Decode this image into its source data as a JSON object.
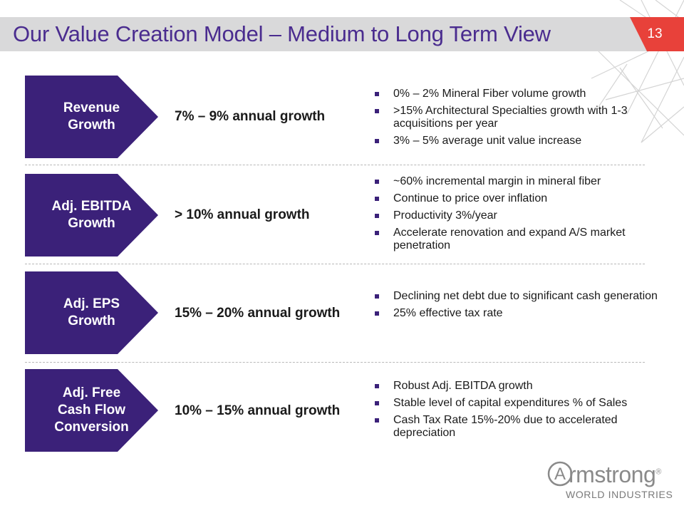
{
  "slide": {
    "title": "Our Value Creation Model – Medium to Long Term View",
    "page_number": "13",
    "accent_color": "#3b2179",
    "corner_color": "#e8413a"
  },
  "rows": [
    {
      "label": "Revenue\nGrowth",
      "target": "7% – 9% annual growth",
      "bullets": [
        "0% – 2% Mineral Fiber volume growth",
        ">15% Architectural Specialties growth with 1-3 acquisitions per year",
        "3% – 5% average unit value increase"
      ]
    },
    {
      "label": "Adj. EBITDA\nGrowth",
      "target": "> 10% annual growth",
      "bullets": [
        "~60% incremental margin in mineral fiber",
        "Continue to price over inflation",
        "Productivity 3%/year",
        "Accelerate renovation and expand A/S market penetration"
      ]
    },
    {
      "label": "Adj. EPS\nGrowth",
      "target": "15% – 20% annual growth",
      "bullets": [
        "Declining net debt due to significant cash generation",
        "25% effective tax rate"
      ]
    },
    {
      "label": "Adj. Free\nCash Flow\nConversion",
      "target": "10% – 15% annual growth",
      "bullets": [
        "Robust Adj. EBITDA growth",
        "Stable level of capital expenditures % of Sales",
        "Cash Tax Rate 15%-20% due to accelerated depreciation"
      ]
    }
  ],
  "logo": {
    "word": "rmstrong",
    "mark": "A",
    "registered": "®",
    "subtitle": "WORLD INDUSTRIES"
  }
}
